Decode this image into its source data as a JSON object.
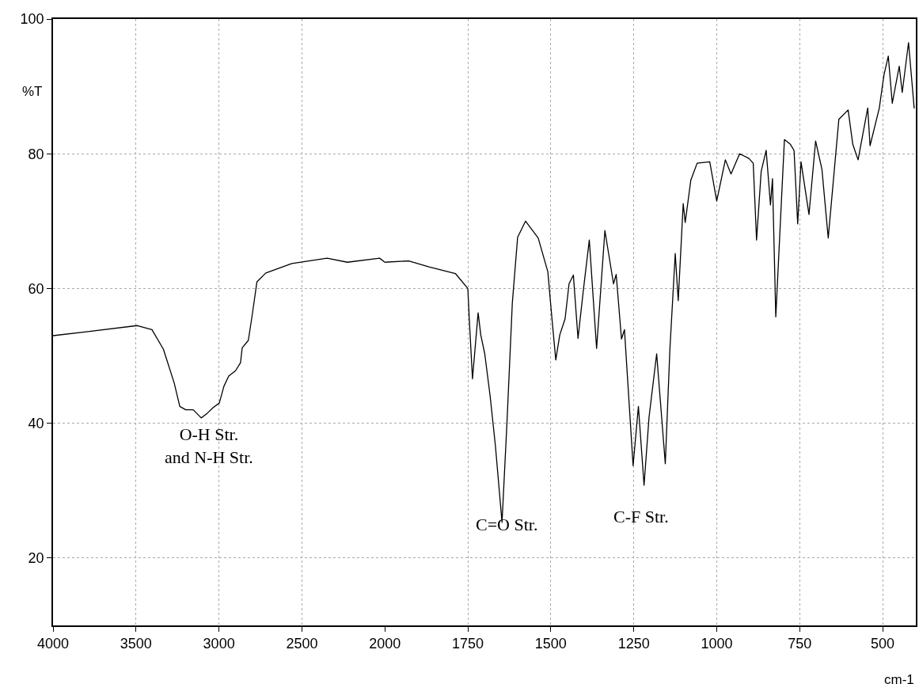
{
  "chart_data": [
    {
      "type": "line",
      "ylabel": "%T",
      "x": [
        4000,
        3790,
        3492,
        3404,
        3335,
        3270,
        3236,
        3200,
        3155,
        3107,
        3070,
        3036,
        2998,
        2970,
        2941,
        2900,
        2870,
        2860,
        2823,
        2800,
        2771,
        2718,
        2561,
        2348,
        2226,
        2032,
        2000
      ],
      "values": [
        53.0,
        53.6,
        54.5,
        53.9,
        51.0,
        46.0,
        42.5,
        42.0,
        42.0,
        40.8,
        41.5,
        42.3,
        43.0,
        45.5,
        47.0,
        47.8,
        49.0,
        51.2,
        52.3,
        56.0,
        61.0,
        62.3,
        63.7,
        64.5,
        63.9,
        64.5,
        63.9
      ],
      "color": "#000000",
      "xlim": [
        4000,
        2000
      ],
      "xticks": [
        4000,
        3500,
        3000,
        2500
      ],
      "ylim": [
        10,
        100
      ],
      "yticks": [
        20,
        40,
        60,
        80,
        100
      ],
      "grid": true,
      "marker": "none",
      "line_style": "solid",
      "annotations": [
        "O-H Str.\nand N-H Str."
      ]
    },
    {
      "type": "line",
      "xlabel": "cm-1",
      "tick_labels": "x",
      "x": [
        2000,
        1928,
        1867,
        1787,
        1750,
        1746,
        1736,
        1719,
        1711,
        1699,
        1683,
        1667,
        1647,
        1632,
        1616,
        1600,
        1576,
        1538,
        1509,
        1497,
        1485,
        1473,
        1457,
        1445,
        1432,
        1418,
        1402,
        1384,
        1362,
        1337,
        1311,
        1303,
        1287,
        1278,
        1268,
        1252,
        1236,
        1219,
        1204,
        1181,
        1155,
        1141,
        1125,
        1116,
        1101,
        1095,
        1078,
        1059,
        1021,
        1000,
        974,
        957,
        931,
        903,
        890,
        880,
        866,
        851,
        838,
        832,
        822,
        796,
        778,
        767,
        756,
        746,
        722,
        702,
        683,
        664,
        632,
        604,
        590,
        574,
        545,
        538,
        510,
        496,
        483,
        471,
        450,
        441,
        422,
        405
      ],
      "values": [
        63.9,
        64.1,
        63.2,
        62.2,
        60.0,
        55.8,
        46.6,
        56.4,
        53.1,
        50.3,
        44.1,
        36.7,
        25.3,
        40.2,
        57.8,
        67.6,
        70.0,
        67.5,
        62.5,
        55.8,
        49.4,
        53.1,
        55.5,
        60.7,
        62.0,
        52.6,
        59.7,
        67.2,
        51.1,
        68.6,
        60.7,
        62.1,
        52.5,
        53.9,
        46.1,
        33.7,
        42.5,
        30.8,
        40.9,
        50.3,
        34.0,
        51.1,
        65.2,
        58.2,
        72.6,
        69.8,
        76.1,
        78.6,
        78.8,
        73.0,
        79.1,
        77.0,
        80.0,
        79.3,
        78.6,
        67.2,
        77.4,
        80.5,
        72.4,
        76.3,
        55.8,
        82.1,
        81.4,
        80.5,
        69.6,
        78.8,
        71.0,
        81.9,
        77.7,
        67.5,
        85.1,
        86.5,
        81.4,
        79.1,
        86.8,
        81.2,
        86.8,
        91.7,
        94.5,
        87.5,
        93.0,
        89.1,
        96.5,
        86.8
      ],
      "color": "#000000",
      "xlim": [
        2000,
        400
      ],
      "xticks": [
        2000,
        1750,
        1500,
        1250,
        1000,
        750,
        500
      ],
      "ylim": [
        10,
        100
      ],
      "yticks": [
        20,
        40,
        60,
        80,
        100
      ],
      "grid": true,
      "marker": "none",
      "line_style": "solid",
      "annotations": [
        "C=O Str.",
        "C-F Str."
      ]
    }
  ]
}
